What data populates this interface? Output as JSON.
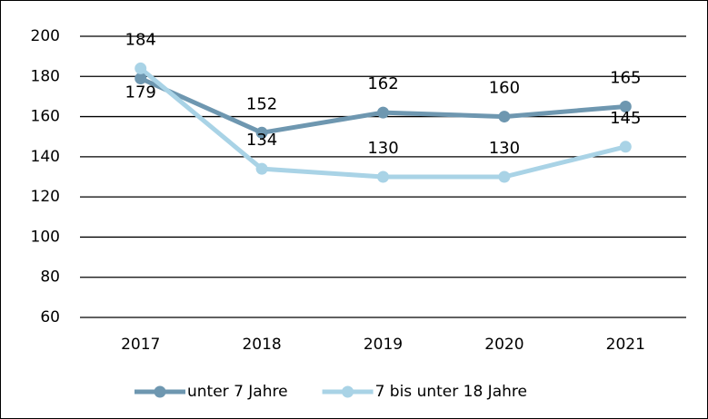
{
  "chart_data": {
    "type": "line",
    "categories": [
      "2017",
      "2018",
      "2019",
      "2020",
      "2021"
    ],
    "series": [
      {
        "name": "unter 7 Jahre",
        "color": "#6e97b0",
        "values": [
          179,
          152,
          162,
          160,
          165
        ]
      },
      {
        "name": "7 bis unter 18 Jahre",
        "color": "#a9d3e6",
        "values": [
          184,
          134,
          130,
          130,
          145
        ]
      }
    ],
    "ylim": [
      60,
      200
    ],
    "yticks": [
      60,
      80,
      100,
      120,
      140,
      160,
      180,
      200
    ],
    "grid": true,
    "legend": "bottom"
  }
}
